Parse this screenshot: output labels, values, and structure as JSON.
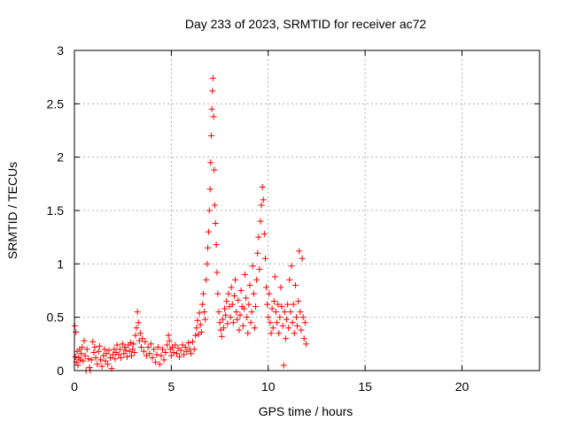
{
  "chart_data": {
    "type": "scatter",
    "title": "Day 233 of 2023, SRMTID for receiver ac72",
    "xlabel": "GPS time / hours",
    "ylabel": "SRMTID / TECUs",
    "xlim": [
      0,
      24
    ],
    "ylim": [
      0,
      3
    ],
    "x_ticks": [
      0,
      5,
      10,
      15,
      20
    ],
    "x_tick_labels": [
      "0",
      "5",
      "10",
      "15",
      "20"
    ],
    "y_ticks": [
      0,
      0.5,
      1,
      1.5,
      2,
      2.5,
      3
    ],
    "y_tick_labels": [
      "0",
      "0.5",
      "1",
      "1.5",
      "2",
      "2.5",
      "3"
    ],
    "grid": true,
    "marker": "plus",
    "series": [
      {
        "name": "SRMTID",
        "color": "#ff0000",
        "points": [
          [
            0.02,
            0.42
          ],
          [
            0.05,
            0.13
          ],
          [
            0.08,
            0.36
          ],
          [
            0.1,
            0.08
          ],
          [
            0.14,
            0.18
          ],
          [
            0.18,
            0.05
          ],
          [
            0.22,
            0.12
          ],
          [
            0.27,
            0.2
          ],
          [
            0.3,
            0.1
          ],
          [
            0.35,
            0.16
          ],
          [
            0.4,
            0.22
          ],
          [
            0.45,
            0.09
          ],
          [
            0.5,
            0.28
          ],
          [
            0.55,
            0.14
          ],
          [
            0.6,
            0.0
          ],
          [
            0.65,
            0.2
          ],
          [
            0.72,
            0.11
          ],
          [
            0.78,
            0.03
          ],
          [
            0.82,
            0.0
          ],
          [
            0.88,
            0.1
          ],
          [
            0.95,
            0.27
          ],
          [
            1.0,
            0.17
          ],
          [
            1.05,
            0.22
          ],
          [
            1.1,
            0.12
          ],
          [
            1.18,
            0.06
          ],
          [
            1.25,
            0.18
          ],
          [
            1.3,
            0.23
          ],
          [
            1.35,
            0.1
          ],
          [
            1.42,
            0.04
          ],
          [
            1.5,
            0.14
          ],
          [
            1.55,
            0.2
          ],
          [
            1.6,
            0.09
          ],
          [
            1.65,
            0.16
          ],
          [
            1.72,
            0.06
          ],
          [
            1.78,
            0.19
          ],
          [
            1.85,
            0.12
          ],
          [
            1.92,
            0.02
          ],
          [
            1.98,
            0.15
          ],
          [
            2.05,
            0.2
          ],
          [
            2.1,
            0.11
          ],
          [
            2.15,
            0.17
          ],
          [
            2.2,
            0.24
          ],
          [
            2.28,
            0.15
          ],
          [
            2.35,
            0.2
          ],
          [
            2.4,
            0.12
          ],
          [
            2.48,
            0.25
          ],
          [
            2.55,
            0.16
          ],
          [
            2.6,
            0.22
          ],
          [
            2.65,
            0.19
          ],
          [
            2.72,
            0.13
          ],
          [
            2.78,
            0.24
          ],
          [
            2.85,
            0.18
          ],
          [
            2.9,
            0.26
          ],
          [
            2.95,
            0.14
          ],
          [
            3.0,
            0.2
          ],
          [
            3.05,
            0.25
          ],
          [
            3.1,
            0.17
          ],
          [
            3.15,
            0.33
          ],
          [
            3.2,
            0.4
          ],
          [
            3.25,
            0.55
          ],
          [
            3.3,
            0.45
          ],
          [
            3.35,
            0.28
          ],
          [
            3.4,
            0.35
          ],
          [
            3.45,
            0.22
          ],
          [
            3.5,
            0.3
          ],
          [
            3.58,
            0.18
          ],
          [
            3.65,
            0.27
          ],
          [
            3.72,
            0.14
          ],
          [
            3.8,
            0.22
          ],
          [
            3.88,
            0.16
          ],
          [
            3.95,
            0.25
          ],
          [
            4.02,
            0.12
          ],
          [
            4.1,
            0.2
          ],
          [
            4.18,
            0.08
          ],
          [
            4.25,
            0.15
          ],
          [
            4.32,
            0.22
          ],
          [
            4.4,
            0.06
          ],
          [
            4.48,
            0.14
          ],
          [
            4.55,
            0.2
          ],
          [
            4.62,
            0.1
          ],
          [
            4.7,
            0.17
          ],
          [
            4.78,
            0.24
          ],
          [
            4.85,
            0.33
          ],
          [
            4.9,
            0.28
          ],
          [
            4.95,
            0.2
          ],
          [
            5.0,
            0.14
          ],
          [
            5.05,
            0.22
          ],
          [
            5.12,
            0.17
          ],
          [
            5.2,
            0.24
          ],
          [
            5.28,
            0.16
          ],
          [
            5.35,
            0.21
          ],
          [
            5.42,
            0.13
          ],
          [
            5.5,
            0.19
          ],
          [
            5.58,
            0.24
          ],
          [
            5.65,
            0.15
          ],
          [
            5.72,
            0.22
          ],
          [
            5.8,
            0.18
          ],
          [
            5.88,
            0.26
          ],
          [
            5.95,
            0.2
          ],
          [
            6.02,
            0.16
          ],
          [
            6.1,
            0.27
          ],
          [
            6.18,
            0.2
          ],
          [
            6.25,
            0.33
          ],
          [
            6.3,
            0.4
          ],
          [
            6.35,
            0.47
          ],
          [
            6.4,
            0.34
          ],
          [
            6.45,
            0.54
          ],
          [
            6.5,
            0.43
          ],
          [
            6.55,
            0.36
          ],
          [
            6.6,
            0.62
          ],
          [
            6.65,
            0.72
          ],
          [
            6.7,
            0.55
          ],
          [
            6.75,
            0.48
          ],
          [
            6.8,
            0.85
          ],
          [
            6.85,
            1.0
          ],
          [
            6.88,
            1.15
          ],
          [
            6.92,
            1.3
          ],
          [
            6.96,
            1.5
          ],
          [
            7.0,
            1.7
          ],
          [
            7.03,
            1.95
          ],
          [
            7.06,
            2.2
          ],
          [
            7.09,
            2.45
          ],
          [
            7.12,
            2.62
          ],
          [
            7.15,
            2.74
          ],
          [
            7.18,
            2.38
          ],
          [
            7.21,
            1.88
          ],
          [
            7.24,
            1.55
          ],
          [
            7.28,
            1.38
          ],
          [
            7.32,
            1.18
          ],
          [
            7.36,
            0.92
          ],
          [
            7.4,
            0.72
          ],
          [
            7.45,
            0.55
          ],
          [
            7.5,
            0.45
          ],
          [
            7.55,
            0.38
          ],
          [
            7.6,
            0.32
          ],
          [
            7.65,
            0.48
          ],
          [
            7.7,
            0.4
          ],
          [
            7.75,
            0.58
          ],
          [
            7.8,
            0.52
          ],
          [
            7.85,
            0.65
          ],
          [
            7.9,
            0.44
          ],
          [
            7.95,
            0.72
          ],
          [
            8.0,
            0.6
          ],
          [
            8.05,
            0.5
          ],
          [
            8.1,
            0.78
          ],
          [
            8.15,
            0.62
          ],
          [
            8.2,
            0.45
          ],
          [
            8.25,
            0.7
          ],
          [
            8.3,
            0.85
          ],
          [
            8.35,
            0.55
          ],
          [
            8.4,
            0.48
          ],
          [
            8.45,
            0.66
          ],
          [
            8.5,
            0.38
          ],
          [
            8.55,
            0.52
          ],
          [
            8.6,
            0.75
          ],
          [
            8.65,
            0.6
          ],
          [
            8.7,
            0.42
          ],
          [
            8.75,
            0.58
          ],
          [
            8.8,
            0.9
          ],
          [
            8.85,
            0.68
          ],
          [
            8.9,
            0.5
          ],
          [
            8.95,
            0.35
          ],
          [
            9.0,
            0.62
          ],
          [
            9.05,
            0.8
          ],
          [
            9.1,
            0.45
          ],
          [
            9.15,
            0.55
          ],
          [
            9.2,
            0.98
          ],
          [
            9.25,
            0.72
          ],
          [
            9.3,
            0.4
          ],
          [
            9.35,
            0.6
          ],
          [
            9.4,
            0.85
          ],
          [
            9.45,
            1.1
          ],
          [
            9.5,
            1.25
          ],
          [
            9.55,
            0.95
          ],
          [
            9.6,
            1.4
          ],
          [
            9.65,
            1.55
          ],
          [
            9.7,
            1.72
          ],
          [
            9.75,
            1.6
          ],
          [
            9.8,
            1.28
          ],
          [
            9.85,
            1.05
          ],
          [
            9.9,
            0.78
          ],
          [
            9.95,
            0.62
          ],
          [
            10.0,
            0.5
          ],
          [
            10.05,
            0.72
          ],
          [
            10.1,
            0.45
          ],
          [
            10.15,
            0.35
          ],
          [
            10.2,
            0.58
          ],
          [
            10.25,
            0.4
          ],
          [
            10.3,
            0.65
          ],
          [
            10.35,
            0.88
          ],
          [
            10.4,
            0.55
          ],
          [
            10.45,
            0.45
          ],
          [
            10.5,
            0.62
          ],
          [
            10.55,
            0.35
          ],
          [
            10.6,
            0.5
          ],
          [
            10.65,
            0.78
          ],
          [
            10.7,
            0.6
          ],
          [
            10.75,
            0.42
          ],
          [
            10.8,
            0.05
          ],
          [
            10.85,
            0.55
          ],
          [
            10.9,
            0.3
          ],
          [
            10.95,
            0.48
          ],
          [
            11.0,
            0.62
          ],
          [
            11.05,
            0.4
          ],
          [
            11.1,
            0.85
          ],
          [
            11.15,
            0.55
          ],
          [
            11.2,
            0.98
          ],
          [
            11.25,
            0.45
          ],
          [
            11.3,
            0.62
          ],
          [
            11.35,
            0.35
          ],
          [
            11.4,
            0.8
          ],
          [
            11.45,
            0.5
          ],
          [
            11.5,
            0.42
          ],
          [
            11.55,
            0.65
          ],
          [
            11.6,
            1.12
          ],
          [
            11.65,
            0.55
          ],
          [
            11.7,
            0.38
          ],
          [
            11.75,
            1.05
          ],
          [
            11.8,
            0.5
          ],
          [
            11.85,
            0.3
          ],
          [
            11.9,
            0.45
          ],
          [
            11.95,
            0.25
          ]
        ]
      }
    ]
  }
}
